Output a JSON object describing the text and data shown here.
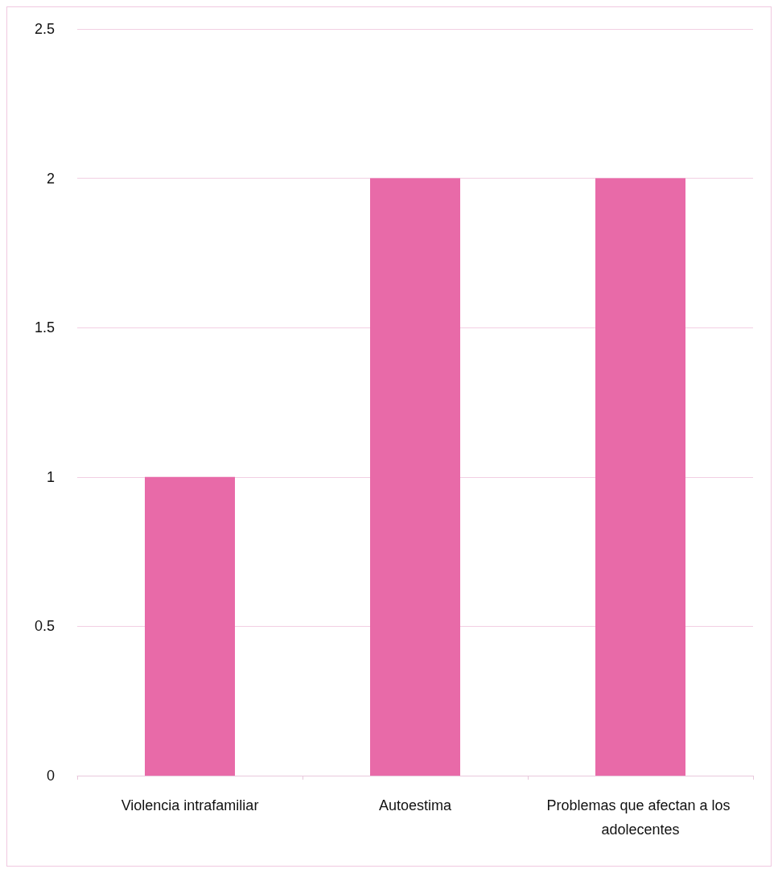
{
  "chart_data": {
    "type": "bar",
    "categories": [
      "Violencia intrafamiliar",
      "Autoestima",
      "Problemas que afectan a los adolecentes"
    ],
    "values": [
      1,
      2,
      2
    ],
    "color": "#e86aa8",
    "ylim": [
      0,
      2.5
    ],
    "yticks": [
      0,
      0.5,
      1,
      1.5,
      2,
      2.5
    ],
    "grid": "y"
  }
}
